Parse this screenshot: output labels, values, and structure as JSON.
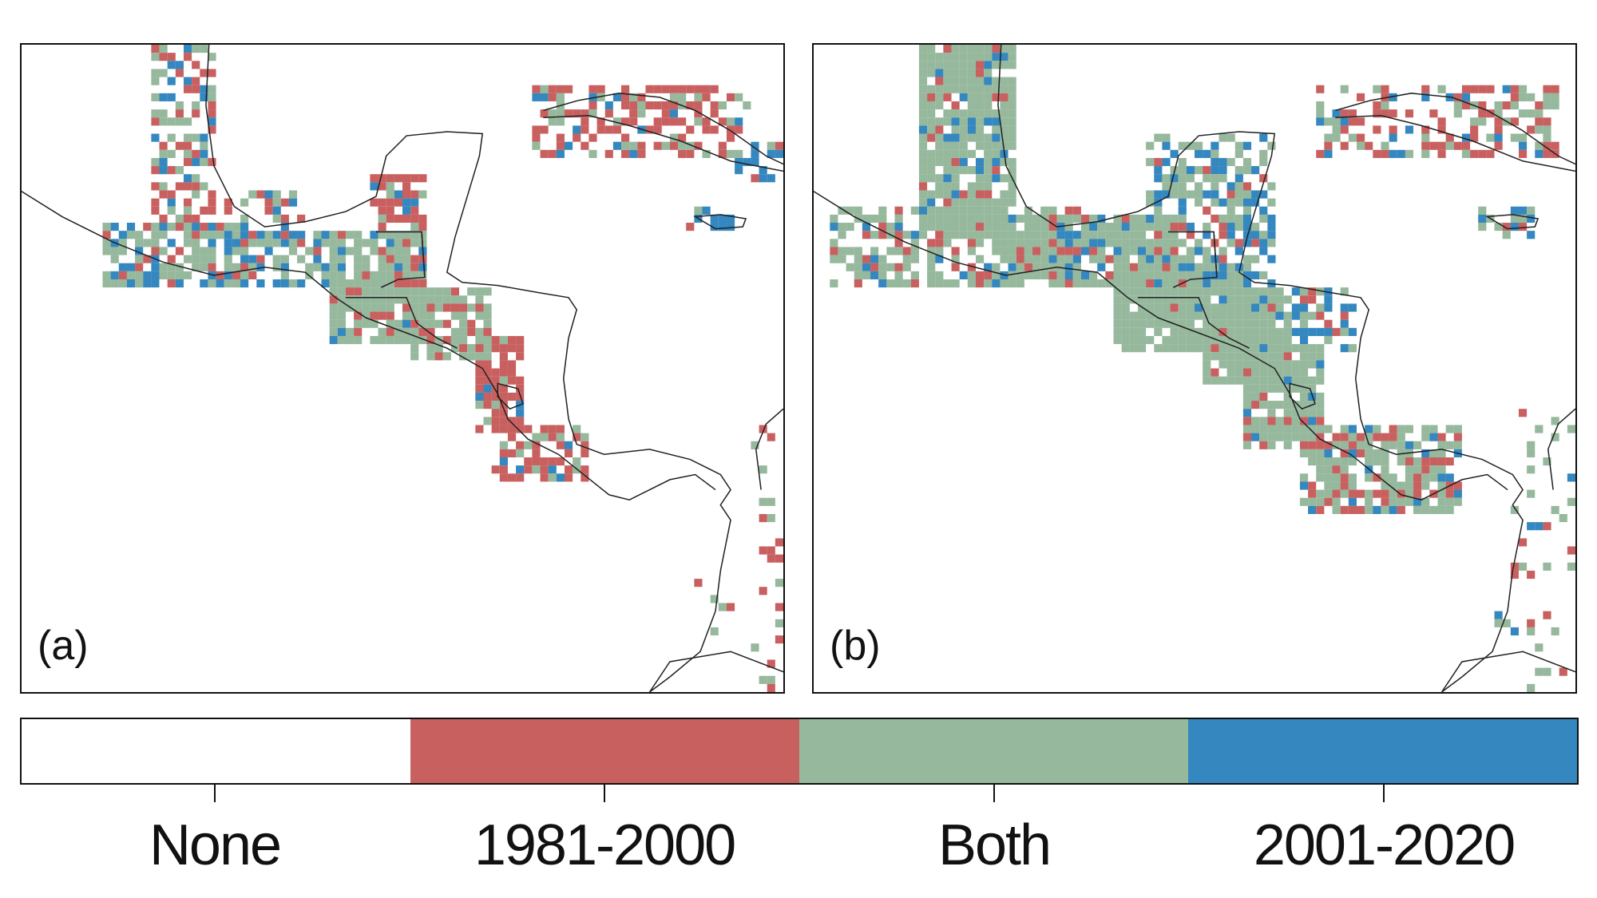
{
  "panels": [
    {
      "label": "(a)"
    },
    {
      "label": "(b)"
    }
  ],
  "legend": {
    "categories": [
      {
        "label": "None",
        "color": "#ffffff"
      },
      {
        "label": "1981-2000",
        "color": "#c96060"
      },
      {
        "label": "Both",
        "color": "#96b89c"
      },
      {
        "label": "2001-2020",
        "color": "#3487bf"
      }
    ]
  }
}
